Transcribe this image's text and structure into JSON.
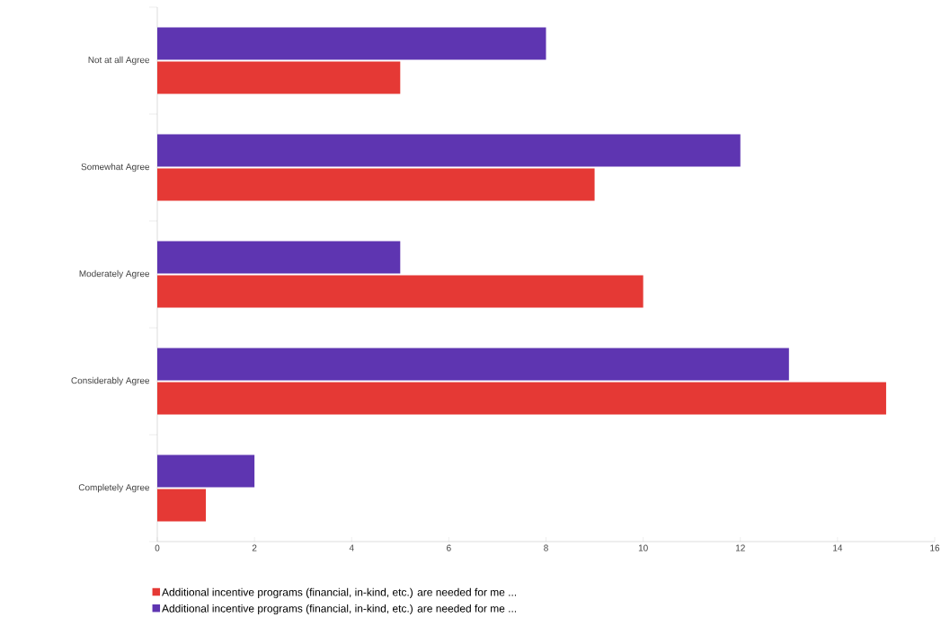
{
  "chart_data": {
    "type": "bar",
    "orientation": "horizontal",
    "categories": [
      "Not at all Agree",
      "Somewhat Agree",
      "Moderately Agree",
      "Considerably Agree",
      "Completely Agree"
    ],
    "series": [
      {
        "name": "Additional incentive programs (financial, in-kind, etc.) are needed for me ...",
        "color": "#e53935",
        "values": [
          5,
          9,
          10,
          15,
          1
        ]
      },
      {
        "name": "Additional incentive programs (financial, in-kind, etc.) are needed for me ...",
        "color": "#5e35b1",
        "values": [
          8,
          12,
          5,
          13,
          2
        ]
      }
    ],
    "xlim": [
      0,
      16
    ],
    "xticks": [
      0,
      2,
      4,
      6,
      8,
      10,
      12,
      14,
      16
    ],
    "grid": false,
    "legend": "bottom"
  }
}
